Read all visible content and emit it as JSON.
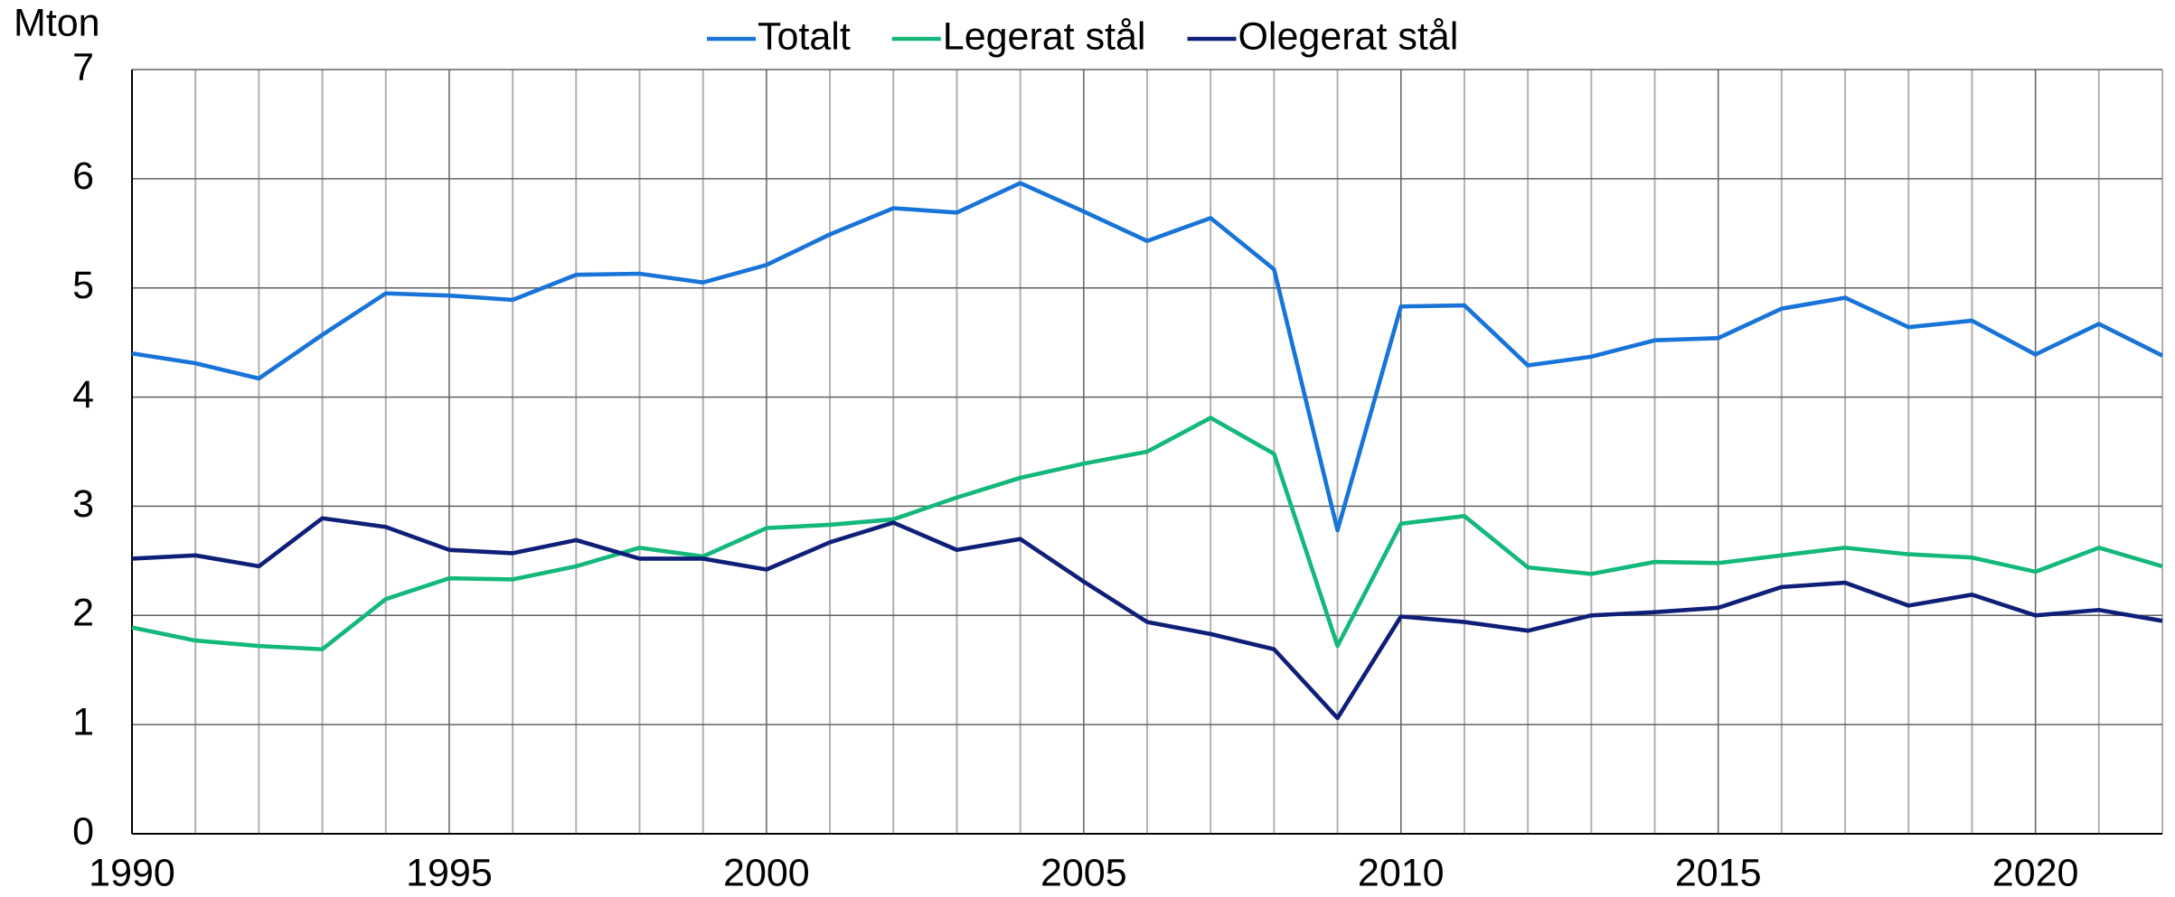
{
  "chart_data": {
    "type": "line",
    "y_label": "Mton",
    "x": [
      1990,
      1991,
      1992,
      1993,
      1994,
      1995,
      1996,
      1997,
      1998,
      1999,
      2000,
      2001,
      2002,
      2003,
      2004,
      2005,
      2006,
      2007,
      2008,
      2009,
      2010,
      2011,
      2012,
      2013,
      2014,
      2015,
      2016,
      2017,
      2018,
      2019,
      2020,
      2021,
      2022
    ],
    "series": [
      {
        "name": "Totalt",
        "color": "#1874d8",
        "values": [
          4.4,
          4.31,
          4.17,
          4.57,
          4.95,
          4.93,
          4.89,
          5.12,
          5.13,
          5.05,
          5.21,
          5.49,
          5.73,
          5.69,
          5.96,
          5.7,
          5.43,
          5.64,
          5.17,
          2.78,
          4.83,
          4.84,
          4.29,
          4.37,
          4.52,
          4.54,
          4.81,
          4.91,
          4.64,
          4.7,
          4.39,
          4.67,
          4.38
        ]
      },
      {
        "name": "Legerat stål",
        "color": "#13b87a",
        "values": [
          1.89,
          1.77,
          1.72,
          1.69,
          2.15,
          2.34,
          2.33,
          2.45,
          2.62,
          2.54,
          2.8,
          2.83,
          2.88,
          3.08,
          3.26,
          3.39,
          3.5,
          3.81,
          3.48,
          1.72,
          2.84,
          2.91,
          2.44,
          2.38,
          2.49,
          2.48,
          2.55,
          2.62,
          2.56,
          2.53,
          2.4,
          2.62,
          2.45
        ]
      },
      {
        "name": "Olegerat stål",
        "color": "#0f1f78",
        "values": [
          2.52,
          2.55,
          2.45,
          2.89,
          2.81,
          2.6,
          2.57,
          2.69,
          2.52,
          2.52,
          2.42,
          2.67,
          2.85,
          2.6,
          2.7,
          2.31,
          1.94,
          1.83,
          1.69,
          1.06,
          1.99,
          1.94,
          1.86,
          2.0,
          2.03,
          2.07,
          2.26,
          2.3,
          2.09,
          2.19,
          2.0,
          2.05,
          1.95
        ]
      }
    ],
    "xlim": [
      1990,
      2022
    ],
    "xticks": [
      1990,
      1995,
      2000,
      2005,
      2010,
      2015,
      2020
    ],
    "ylim": [
      0,
      7
    ],
    "yticks": [
      0,
      1,
      2,
      3,
      4,
      5,
      6,
      7
    ],
    "grid": true,
    "legend": "top"
  }
}
